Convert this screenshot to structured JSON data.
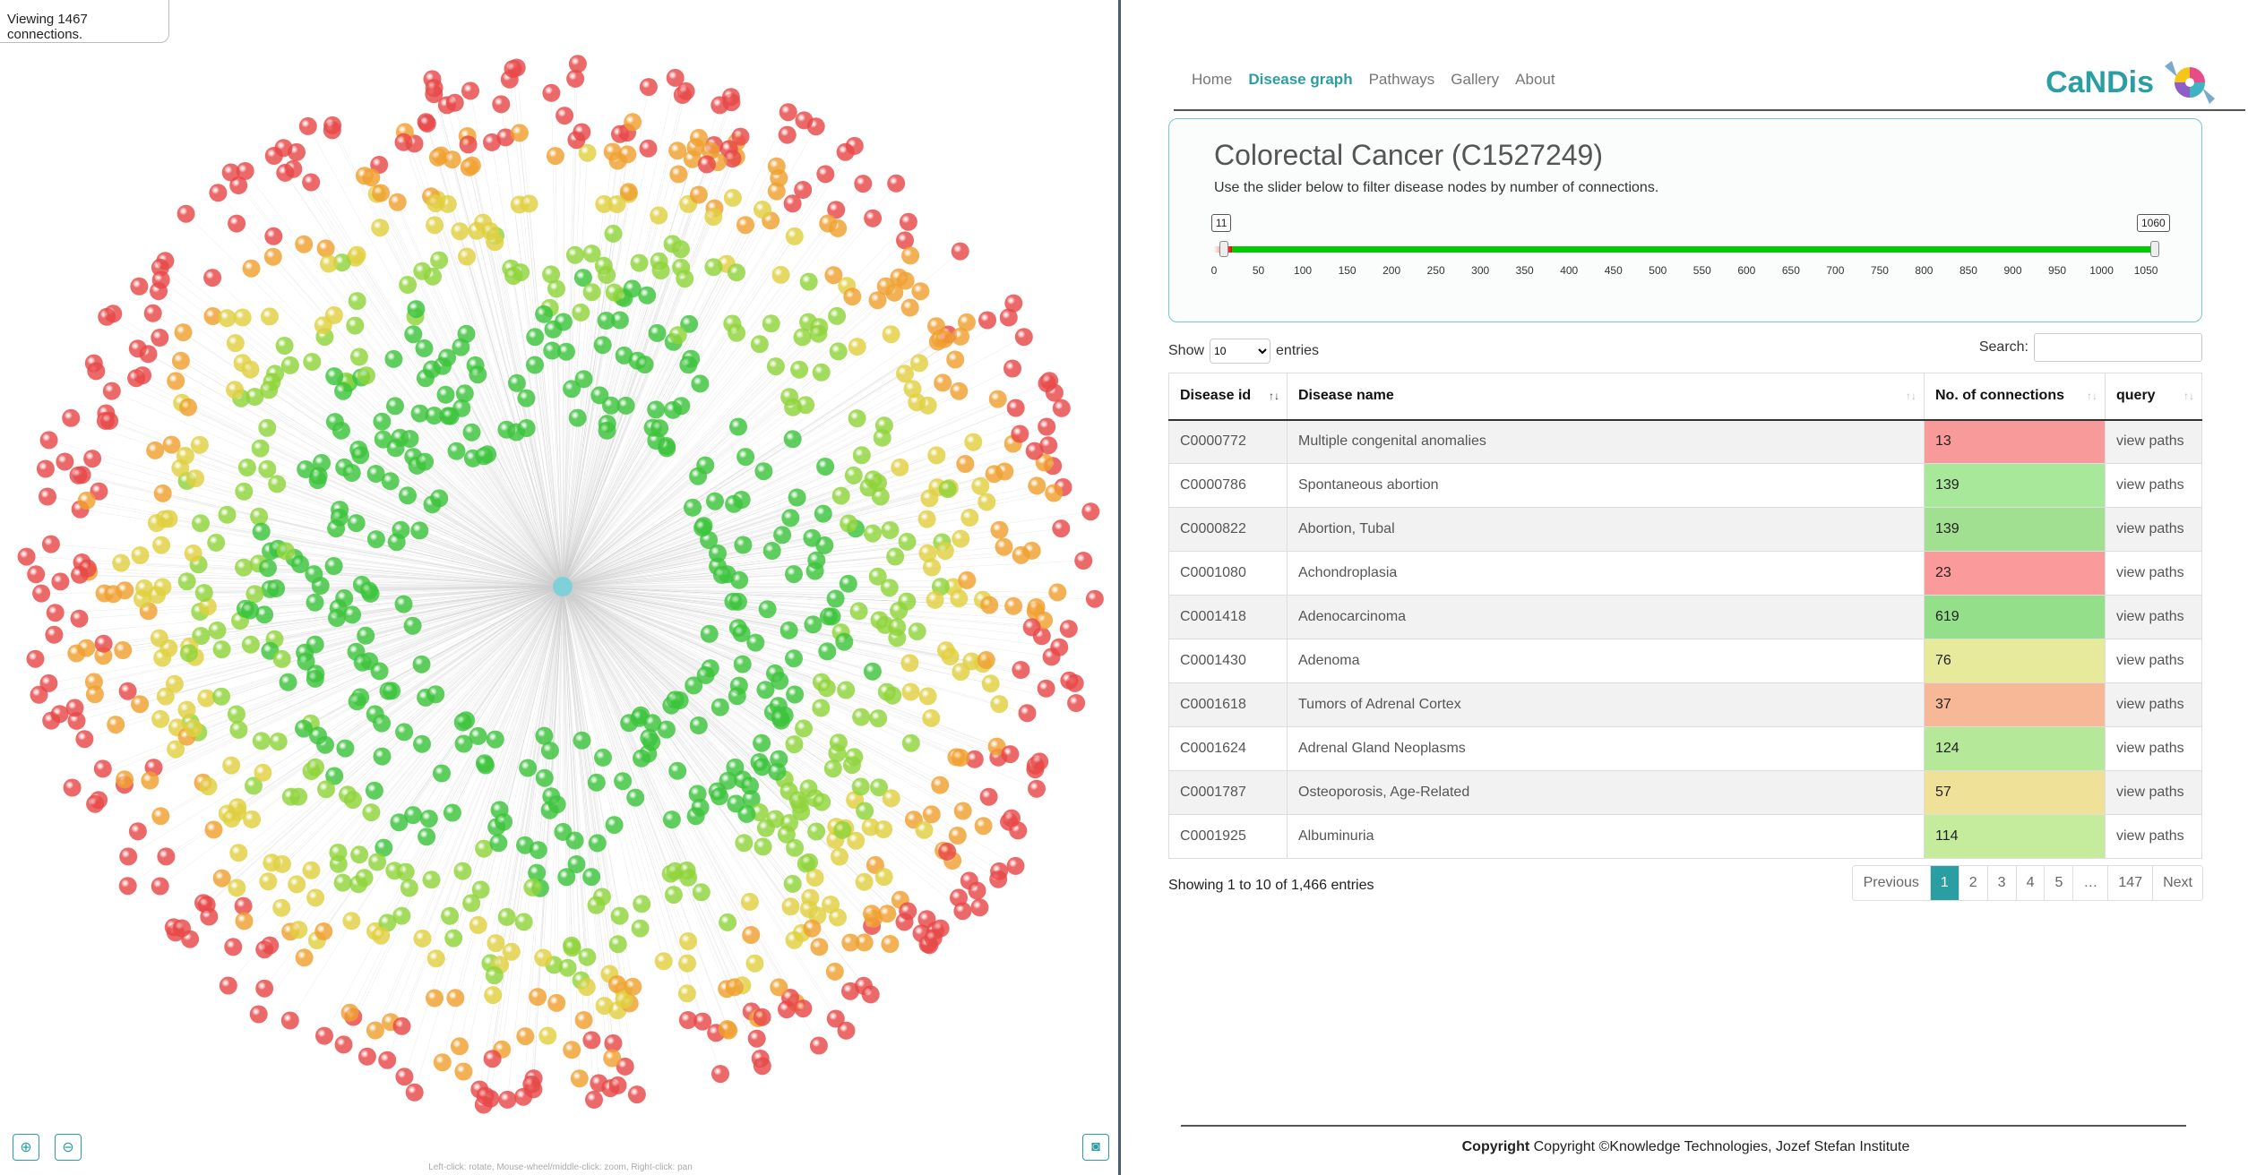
{
  "graph": {
    "viewing_text": "Viewing 1467 connections.",
    "hint": "Left-click: rotate, Mouse-wheel/middle-click: zoom, Right-click: pan",
    "zoom_in_icon": "zoom-in-icon",
    "zoom_out_icon": "zoom-out-icon",
    "camera_icon": "camera-icon"
  },
  "nav": {
    "items": [
      {
        "label": "Home",
        "active": false
      },
      {
        "label": "Disease graph",
        "active": true
      },
      {
        "label": "Pathways",
        "active": false
      },
      {
        "label": "Gallery",
        "active": false
      },
      {
        "label": "About",
        "active": false
      }
    ],
    "brand": "CaNDis"
  },
  "panel": {
    "title": "Colorectal Cancer (C1527249)",
    "description": "Use the slider below to filter disease nodes by number of connections.",
    "slider": {
      "min_label": "11",
      "max_label": "1060",
      "min_value": 11,
      "max_value": 1060,
      "scale_max": 1060,
      "ticks": [
        "0",
        "50",
        "100",
        "150",
        "200",
        "250",
        "300",
        "350",
        "400",
        "450",
        "500",
        "550",
        "600",
        "650",
        "700",
        "750",
        "800",
        "850",
        "900",
        "950",
        "1000",
        "1050"
      ]
    }
  },
  "controls": {
    "show_label": "Show",
    "entries_label": "entries",
    "page_size": "10",
    "search_label": "Search:"
  },
  "table": {
    "headers": [
      "Disease id",
      "Disease name",
      "No. of connections",
      "query"
    ],
    "rows": [
      {
        "id": "C0000772",
        "name": "Multiple congenital anomalies",
        "conn": "13",
        "color": "#f89a9a",
        "query": "view paths"
      },
      {
        "id": "C0000786",
        "name": "Spontaneous abortion",
        "conn": "139",
        "color": "#a8e89a",
        "query": "view paths"
      },
      {
        "id": "C0000822",
        "name": "Abortion, Tubal",
        "conn": "139",
        "color": "#a0e090",
        "query": "view paths"
      },
      {
        "id": "C0001080",
        "name": "Achondroplasia",
        "conn": "23",
        "color": "#fb9a9a",
        "query": "view paths"
      },
      {
        "id": "C0001418",
        "name": "Adenocarcinoma",
        "conn": "619",
        "color": "#94e08a",
        "query": "view paths"
      },
      {
        "id": "C0001430",
        "name": "Adenoma",
        "conn": "76",
        "color": "#e6ea9a",
        "query": "view paths"
      },
      {
        "id": "C0001618",
        "name": "Tumors of Adrenal Cortex",
        "conn": "37",
        "color": "#f7b898",
        "query": "view paths"
      },
      {
        "id": "C0001624",
        "name": "Adrenal Gland Neoplasms",
        "conn": "124",
        "color": "#b6e89a",
        "query": "view paths"
      },
      {
        "id": "C0001787",
        "name": "Osteoporosis, Age-Related",
        "conn": "57",
        "color": "#efe298",
        "query": "view paths"
      },
      {
        "id": "C0001925",
        "name": "Albuminuria",
        "conn": "114",
        "color": "#c4ec9c",
        "query": "view paths"
      }
    ]
  },
  "info": "Showing 1 to 10 of 1,466 entries",
  "pager": [
    "Previous",
    "1",
    "2",
    "3",
    "4",
    "5",
    "…",
    "147",
    "Next"
  ],
  "footer": "Copyright ©Knowledge Technologies, Jozef Stefan Institute"
}
